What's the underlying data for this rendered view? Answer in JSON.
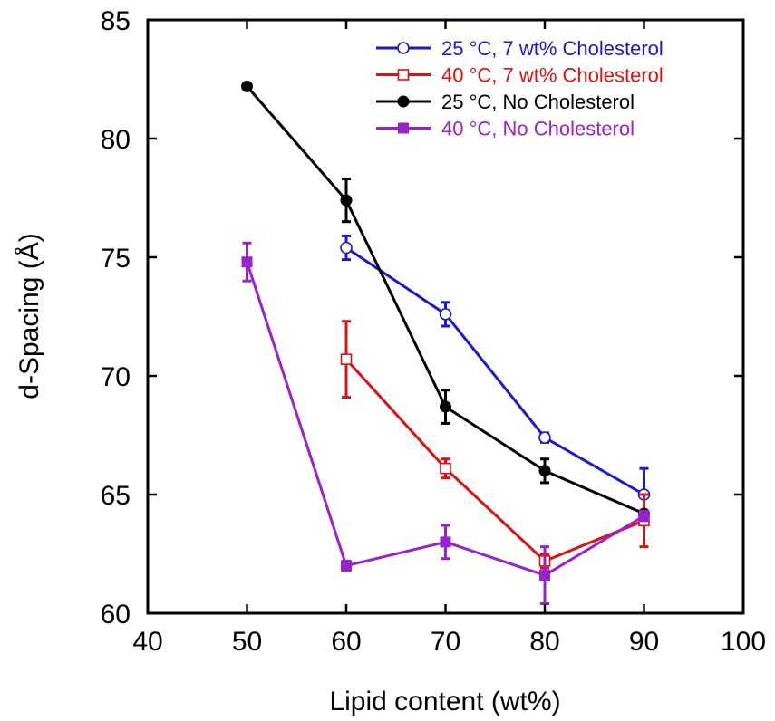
{
  "chart_data": {
    "type": "line",
    "title": "",
    "xlabel": "Lipid content (wt%)",
    "ylabel": "d-Spacing (Å)",
    "xlim": [
      40,
      100
    ],
    "ylim": [
      60,
      85
    ],
    "xticks": [
      40,
      50,
      60,
      70,
      80,
      90,
      100
    ],
    "yticks": [
      60,
      65,
      70,
      75,
      80,
      85
    ],
    "grid": false,
    "legend_position": "top-right",
    "series": [
      {
        "name": "25 °C, 7 wt% Cholesterol",
        "color": "#1a1acc",
        "marker": "open-circle",
        "x": [
          60,
          70,
          80,
          90
        ],
        "y": [
          75.4,
          72.6,
          67.4,
          65.0
        ],
        "err": [
          0.5,
          0.5,
          0.2,
          1.1
        ]
      },
      {
        "name": "40 °C, 7 wt% Cholesterol",
        "color": "#dd1111",
        "marker": "open-square",
        "x": [
          60,
          70,
          80,
          90
        ],
        "y": [
          70.7,
          66.1,
          62.2,
          63.9
        ],
        "err": [
          1.6,
          0.4,
          0.3,
          1.1
        ]
      },
      {
        "name": "25 °C, No Cholesterol",
        "color": "#000000",
        "marker": "filled-circle",
        "x": [
          50,
          60,
          70,
          80,
          90
        ],
        "y": [
          82.2,
          77.4,
          68.7,
          66.0,
          64.2
        ],
        "err": [
          0,
          0.9,
          0.7,
          0.5,
          0
        ]
      },
      {
        "name": "40 °C, No Cholesterol",
        "color": "#9922cc",
        "marker": "filled-square",
        "x": [
          50,
          60,
          70,
          80,
          90
        ],
        "y": [
          74.8,
          62.0,
          63.0,
          61.6,
          64.1
        ],
        "err": [
          0.8,
          0.2,
          0.7,
          1.2,
          0.2
        ]
      }
    ]
  }
}
